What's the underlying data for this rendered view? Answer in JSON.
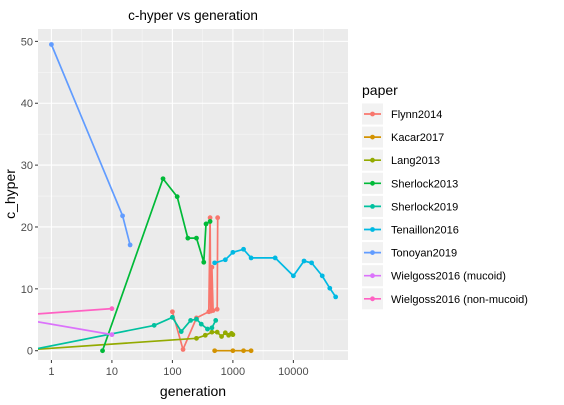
{
  "chart_data": {
    "type": "line",
    "title": "c-hyper vs generation",
    "xlabel": "generation",
    "ylabel": "c_hyper",
    "x_scale": "log10",
    "xlim": [
      0.6,
      80000
    ],
    "ylim": [
      -1.5,
      52
    ],
    "x_ticks": [
      {
        "value": 1,
        "label": "1"
      },
      {
        "value": 10,
        "label": "10"
      },
      {
        "value": 100,
        "label": "100"
      },
      {
        "value": 1000,
        "label": "1000"
      },
      {
        "value": 10000,
        "label": "10000"
      }
    ],
    "y_ticks": [
      {
        "value": 0,
        "label": "0"
      },
      {
        "value": 10,
        "label": "10"
      },
      {
        "value": 20,
        "label": "20"
      },
      {
        "value": 30,
        "label": "30"
      },
      {
        "value": 40,
        "label": "40"
      },
      {
        "value": 50,
        "label": "50"
      }
    ],
    "grid": true,
    "panel_background": "#ebebeb",
    "legend": {
      "title": "paper",
      "position": "right"
    },
    "series": [
      {
        "name": "Flynn2014",
        "color": "#F8766D",
        "points": [
          [
            100,
            6.3
          ],
          [
            150,
            0.2
          ],
          [
            250,
            5.3
          ],
          [
            400,
            6.3
          ],
          [
            420,
            21.5
          ],
          [
            430,
            6.4
          ],
          [
            440,
            6.5
          ],
          [
            450,
            13.5
          ],
          [
            470,
            6.5
          ],
          [
            550,
            6.7
          ],
          [
            560,
            21.5
          ]
        ]
      },
      {
        "name": "Kacar2017",
        "color": "#D39200",
        "points": [
          [
            500,
            0
          ],
          [
            1000,
            0
          ],
          [
            1500,
            0
          ],
          [
            2000,
            0
          ]
        ]
      },
      {
        "name": "Lang2013",
        "color": "#93AA00",
        "points": [
          [
            0.5,
            0.2
          ],
          [
            250,
            2.0
          ],
          [
            350,
            2.5
          ],
          [
            450,
            3.0
          ],
          [
            550,
            3.0
          ],
          [
            650,
            2.3
          ],
          [
            750,
            2.9
          ],
          [
            850,
            2.5
          ],
          [
            950,
            2.8
          ],
          [
            1000,
            2.6
          ]
        ]
      },
      {
        "name": "Sherlock2013",
        "color": "#00BA38",
        "points": [
          [
            7,
            0
          ],
          [
            70,
            27.8
          ],
          [
            120,
            24.9
          ],
          [
            180,
            18.2
          ],
          [
            250,
            18.2
          ],
          [
            330,
            14.3
          ],
          [
            360,
            20.5
          ],
          [
            420,
            20.9
          ]
        ]
      },
      {
        "name": "Sherlock2019",
        "color": "#00C19F",
        "points": [
          [
            0.5,
            0.2
          ],
          [
            50,
            4.1
          ],
          [
            100,
            5.4
          ],
          [
            140,
            3.1
          ],
          [
            200,
            4.9
          ],
          [
            250,
            5.1
          ],
          [
            300,
            4.3
          ],
          [
            380,
            3.5
          ],
          [
            450,
            3.7
          ],
          [
            520,
            4.9
          ]
        ]
      },
      {
        "name": "Tenaillon2016",
        "color": "#00B9E3",
        "points": [
          [
            500,
            14.2
          ],
          [
            750,
            14.7
          ],
          [
            1000,
            15.9
          ],
          [
            1500,
            16.4
          ],
          [
            2000,
            15.0
          ],
          [
            5000,
            15.0
          ],
          [
            10000,
            12.1
          ],
          [
            15000,
            14.5
          ],
          [
            20000,
            14.2
          ],
          [
            30000,
            12.1
          ],
          [
            40000,
            10.1
          ],
          [
            50000,
            8.7
          ]
        ]
      },
      {
        "name": "Tonoyan2019",
        "color": "#619CFF",
        "points": [
          [
            1,
            49.5
          ],
          [
            15,
            21.8
          ],
          [
            20,
            17.1
          ]
        ]
      },
      {
        "name": "Wielgoss2016 (mucoid)",
        "color": "#DB72FB",
        "points": [
          [
            0.5,
            4.8
          ],
          [
            10,
            2.6
          ]
        ]
      },
      {
        "name": "Wielgoss2016 (non-mucoid)",
        "color": "#FF61C3",
        "points": [
          [
            0.5,
            5.9
          ],
          [
            10,
            6.8
          ]
        ]
      }
    ]
  }
}
